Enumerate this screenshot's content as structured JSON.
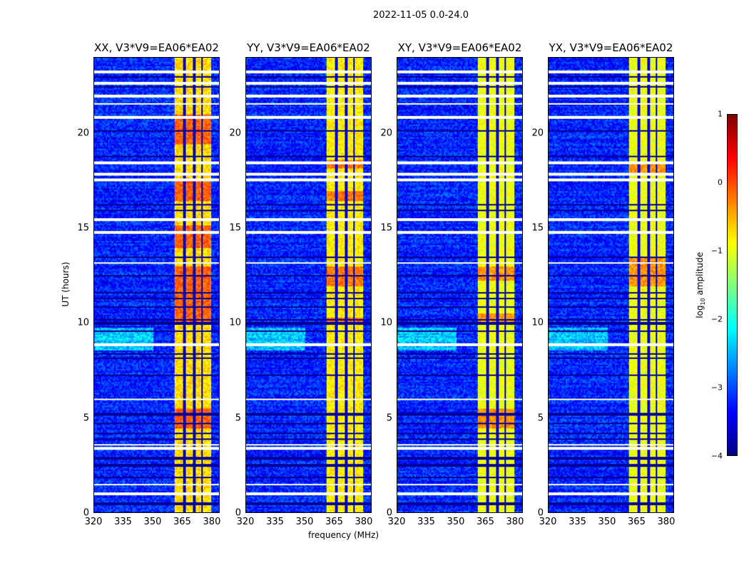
{
  "chart_data": {
    "type": "heatmap",
    "title": "2022-11-05 0.0-24.0",
    "xlabel": "frequency (MHz)",
    "ylabel": "UT (hours)",
    "xlim": [
      320,
      384
    ],
    "ylim": [
      0,
      24
    ],
    "xticks": [
      "320",
      "335",
      "350",
      "365",
      "380"
    ],
    "yticks": [
      "0",
      "5",
      "10",
      "15",
      "20"
    ],
    "colorbar": {
      "label": "log10 amplitude",
      "label_main": "log",
      "label_sub": "10",
      "label_tail": " amplitude",
      "range": [
        -4,
        1
      ],
      "ticks": [
        "1",
        "0",
        "−1",
        "−2",
        "−3",
        "−4"
      ],
      "colormap": "jet"
    },
    "background_level": -3.2,
    "rfi_band_mhz": [
      360.5,
      380
    ],
    "band_gap_channels_mhz": [
      366,
      371,
      375
    ],
    "flagged_white_ut": [
      23.3,
      22.7,
      22.0,
      21.6,
      20.9,
      18.5,
      17.9,
      17.6,
      15.5,
      14.8,
      13.2,
      8.9,
      6.0,
      3.6,
      3.4,
      1.5,
      1.0
    ],
    "dark_rows_ut": [
      23.0,
      22.5,
      20.2,
      18.8,
      16.3,
      16.0,
      13.5,
      12.5,
      11.6,
      11.3,
      10.9,
      10.2,
      10.0,
      9.6,
      8.4,
      8.2,
      7.3,
      5.2,
      4.7,
      4.2,
      3.9,
      2.9,
      2.5,
      1.9,
      0.5
    ],
    "panels": [
      {
        "title": "XX, V3*V9=EA06*EA02",
        "band_level": -0.7,
        "hot_ut": [
          [
            4.5,
            5.5
          ],
          [
            10,
            13
          ],
          [
            14,
            15.2
          ],
          [
            16.5,
            17.6
          ],
          [
            19.5,
            21
          ]
        ]
      },
      {
        "title": "YY, V3*V9=EA06*EA02",
        "band_level": -0.8,
        "hot_ut": [
          [
            10,
            10.3
          ],
          [
            12,
            13
          ],
          [
            16.5,
            17
          ],
          [
            18.2,
            18.6
          ]
        ]
      },
      {
        "title": "XY, V3*V9=EA06*EA02",
        "band_level": -0.95,
        "hot_ut": [
          [
            4.5,
            5.5
          ],
          [
            10,
            10.5
          ],
          [
            12.3,
            13
          ]
        ]
      },
      {
        "title": "YX, V3*V9=EA06*EA02",
        "band_level": -0.95,
        "hot_ut": [
          [
            12,
            13.5
          ],
          [
            18,
            18.5
          ]
        ]
      }
    ]
  }
}
